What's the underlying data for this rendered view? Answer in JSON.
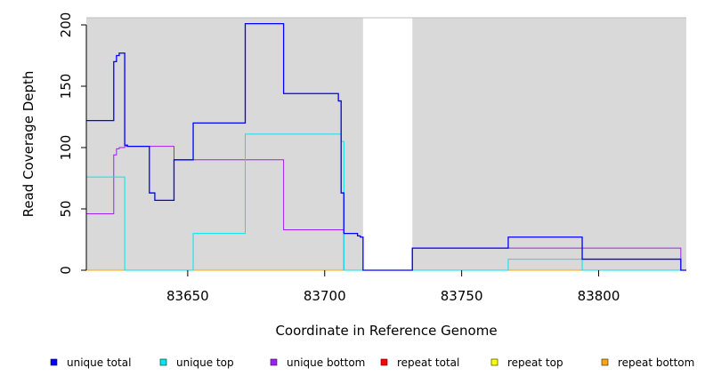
{
  "chart_data": {
    "type": "line",
    "title": "",
    "xlabel": "Coordinate in Reference Genome",
    "ylabel": "Read Coverage Depth",
    "xlim": [
      83613,
      83832
    ],
    "ylim": [
      0,
      200
    ],
    "x_ticks": [
      83650,
      83700,
      83750,
      83800
    ],
    "y_ticks": [
      0,
      50,
      100,
      150,
      200
    ],
    "grid": false,
    "background_color": "#d9d9d9",
    "shaded_regions": [
      [
        83613,
        83714
      ],
      [
        83732,
        83832
      ]
    ],
    "legend_position": "bottom",
    "series": [
      {
        "name": "unique total",
        "color": "#0000ff",
        "x": [
          83613,
          83623,
          83624,
          83625,
          83627,
          83628,
          83629,
          83636,
          83638,
          83645,
          83652,
          83671,
          83685,
          83705,
          83706,
          83707,
          83708,
          83712,
          83713,
          83714,
          83732,
          83767,
          83794,
          83830,
          83832
        ],
        "y": [
          122,
          170,
          175,
          177,
          102,
          101,
          101,
          63,
          57,
          90,
          120,
          201,
          144,
          138,
          63,
          30,
          30,
          28,
          27,
          0,
          18,
          27,
          9,
          0,
          0
        ]
      },
      {
        "name": "unique top",
        "color": "#00e5ee",
        "x": [
          83613,
          83627,
          83652,
          83671,
          83706,
          83707,
          83714,
          83732,
          83767,
          83794,
          83830,
          83832
        ],
        "y": [
          76,
          0,
          30,
          111,
          105,
          0,
          0,
          0,
          9,
          0,
          0,
          0
        ]
      },
      {
        "name": "unique bottom",
        "color": "#a020f0",
        "x": [
          83613,
          83623,
          83624,
          83625,
          83627,
          83629,
          83645,
          83685,
          83707,
          83714,
          83732,
          83794,
          83830,
          83832
        ],
        "y": [
          46,
          94,
          99,
          100,
          101,
          101,
          90,
          33,
          0,
          0,
          18,
          18,
          0,
          0
        ]
      },
      {
        "name": "repeat total",
        "color": "#ff0000",
        "x": [
          83613,
          83832
        ],
        "y": [
          0,
          0
        ]
      },
      {
        "name": "repeat top",
        "color": "#ffff00",
        "x": [
          83613,
          83832
        ],
        "y": [
          0,
          0
        ]
      },
      {
        "name": "repeat bottom",
        "color": "#ffa500",
        "x": [
          83613,
          83714,
          83732,
          83832
        ],
        "y": [
          0,
          0,
          0,
          0
        ]
      }
    ]
  }
}
